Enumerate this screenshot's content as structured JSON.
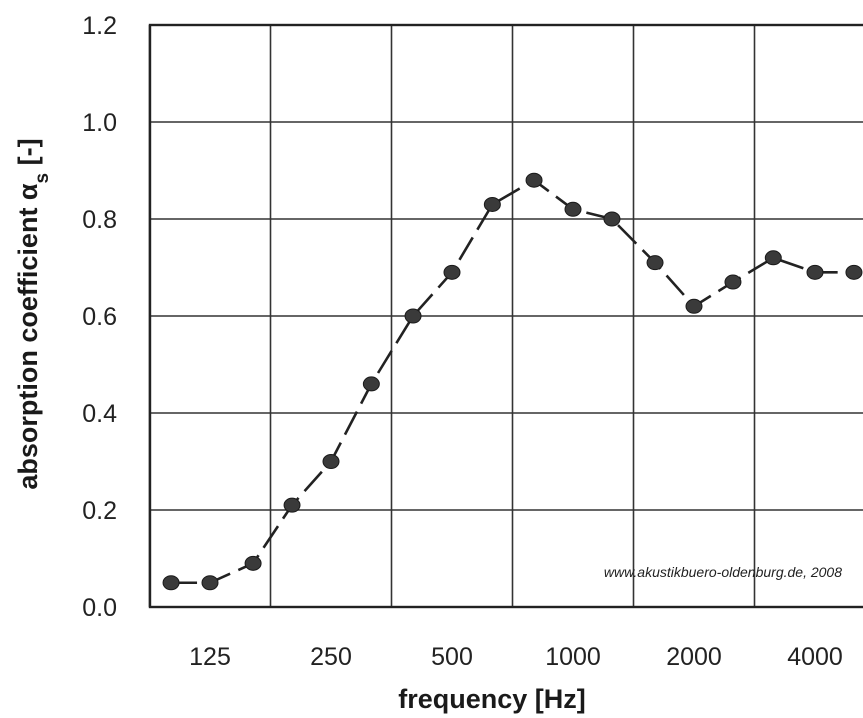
{
  "chart_data": {
    "type": "line",
    "xlabel": "frequency [Hz]",
    "ylabel": "absorption coefficient α",
    "ylabel_sub": "s",
    "ylabel_unit": " [-]",
    "xtick_labels": [
      "125",
      "250",
      "500",
      "1000",
      "2000",
      "4000"
    ],
    "ytick_labels": [
      "0.0",
      "0.2",
      "0.4",
      "0.6",
      "0.8",
      "1.0",
      "1.2"
    ],
    "ylim": [
      0,
      1.2
    ],
    "xscale": "log",
    "grid": true,
    "annotation": "www.akustikbuero-oldenburg.de, 2008",
    "series": [
      {
        "x": [
          100,
          125,
          160,
          200,
          250,
          315,
          400,
          500,
          630,
          800,
          1000,
          1250,
          1600,
          2000,
          2500,
          3150,
          4000,
          5000
        ],
        "values": [
          0.05,
          0.05,
          0.09,
          0.21,
          0.3,
          0.46,
          0.6,
          0.69,
          0.83,
          0.88,
          0.82,
          0.8,
          0.71,
          0.62,
          0.67,
          0.72,
          0.69,
          0.69
        ]
      }
    ]
  }
}
